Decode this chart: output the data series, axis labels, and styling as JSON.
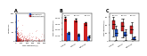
{
  "panel_A": {
    "title": "A",
    "xlabel": "SNP distance(s)",
    "ylabel": "Frequency",
    "line_within_color": "#2255cc",
    "line_between_color": "#cc2222",
    "within_label": "Within patient",
    "between_label": "Between patients",
    "xlim": [
      0,
      500
    ],
    "ylim": [
      0,
      150
    ],
    "xticks": [
      0,
      100,
      200,
      300,
      400,
      500
    ],
    "yticks": [
      0,
      50,
      100,
      150
    ]
  },
  "panel_B": {
    "title": "B",
    "ylabel": "SNP distance(s)",
    "categories": [
      "States",
      "CFCCs",
      "Patients"
    ],
    "red_values": [
      3900,
      3600,
      3000
    ],
    "blue_values": [
      1400,
      1100,
      700
    ],
    "red_errors": [
      300,
      280,
      250
    ],
    "blue_errors": [
      200,
      180,
      150
    ],
    "red_color": "#cc2222",
    "blue_color": "#2255cc",
    "ylim": [
      0,
      4800
    ],
    "yticks": [
      0,
      1000,
      2000,
      3000,
      4000
    ],
    "ytick_labels": [
      "0",
      "1,000",
      "2,000",
      "3,000",
      "4,000"
    ],
    "pval_y": 4400,
    "pvals": [
      "p<0.001",
      "p<0.001",
      "p<0.001"
    ]
  },
  "panel_C": {
    "title": "C",
    "ylabel": "SNP distance(s)",
    "categories": [
      "States",
      "CFCCs",
      "Patients"
    ],
    "red_med": [
      42,
      38,
      28
    ],
    "red_q1": [
      30,
      25,
      18
    ],
    "red_q3": [
      52,
      48,
      38
    ],
    "red_min": [
      10,
      8,
      5
    ],
    "red_max": [
      60,
      56,
      48
    ],
    "blue_med": [
      20,
      16,
      5
    ],
    "blue_q1": [
      12,
      10,
      2
    ],
    "blue_q3": [
      28,
      22,
      8
    ],
    "blue_min": [
      2,
      2,
      0
    ],
    "blue_max": [
      38,
      30,
      12
    ],
    "red_color": "#cc2222",
    "blue_color": "#2255cc",
    "ylim": [
      0,
      70
    ],
    "yticks": [
      0,
      20,
      40,
      60
    ],
    "pval_y": 65,
    "pvals": [
      "p<0.001",
      "p<0.001",
      "p<0.001"
    ]
  },
  "background_color": "#ffffff"
}
